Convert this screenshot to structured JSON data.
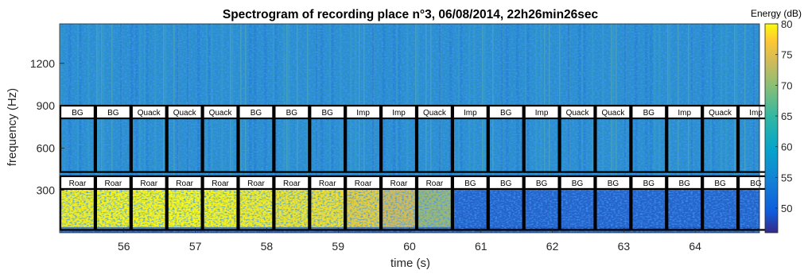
{
  "chart_data": {
    "type": "heatmap",
    "title": "Spectrogram of recording place n°3, 06/08/2014, 22h26min26sec",
    "xlabel": "time (s)",
    "ylabel": "frequency (Hz)",
    "xlim": [
      55.1,
      64.9
    ],
    "ylim": [
      0,
      1480
    ],
    "x_ticks": [
      56,
      57,
      58,
      59,
      60,
      61,
      62,
      63,
      64
    ],
    "y_ticks": [
      300,
      600,
      900,
      1200
    ],
    "colorbar": {
      "label": "Energy (dB)",
      "range": [
        46,
        80
      ],
      "ticks": [
        50,
        55,
        60,
        65,
        70,
        75,
        80
      ],
      "colormap": "parula"
    },
    "segment_bounds": [
      55.1,
      55.6,
      56.1,
      56.6,
      57.1,
      57.6,
      58.1,
      58.6,
      59.1,
      59.6,
      60.1,
      60.6,
      61.1,
      61.6,
      62.1,
      62.6,
      63.1,
      63.6,
      64.1,
      64.6
    ],
    "bands": [
      {
        "name": "mid",
        "freq_range": [
          430,
          900
        ],
        "labels": [
          "BG",
          "BG",
          "Quack",
          "Quack",
          "Quack",
          "BG",
          "BG",
          "BG",
          "Imp",
          "Imp",
          "Quack",
          "Imp",
          "BG",
          "Imp",
          "Quack",
          "Quack",
          "BG",
          "Imp",
          "Quack",
          "Imp"
        ]
      },
      {
        "name": "low",
        "freq_range": [
          20,
          400
        ],
        "labels": [
          "Roar",
          "Roar",
          "Roar",
          "Roar",
          "Roar",
          "Roar",
          "Roar",
          "Roar",
          "Roar",
          "Roar",
          "Roar",
          "BG",
          "BG",
          "BG",
          "BG",
          "BG",
          "BG",
          "BG",
          "BG",
          "BG"
        ]
      }
    ]
  }
}
